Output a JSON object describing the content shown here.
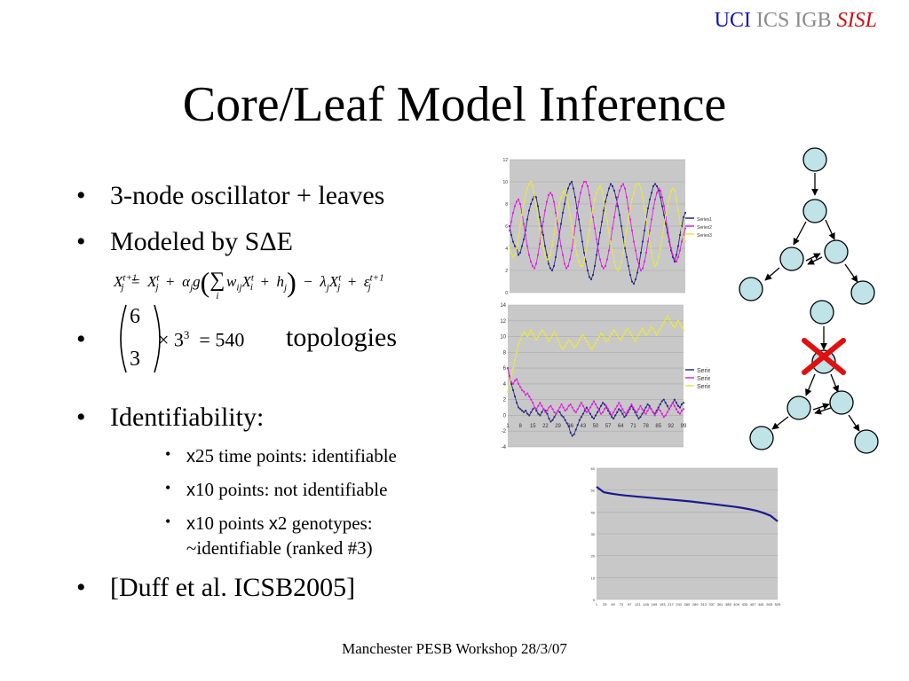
{
  "header": {
    "brand_uci": "UCI",
    "brand_mid": " ICS IGB ",
    "brand_sisl": "SISL"
  },
  "slide": {
    "title": "Core/Leaf Model Inference",
    "bullets": {
      "b1": "3-node oscillator + leaves",
      "b2": "Modeled by SΔE",
      "b3_text": "topologies",
      "b3_times": "× 3",
      "b3_exp": "3",
      "b3_eq": "= 540",
      "b3_binom_top": "6",
      "b3_binom_bot": "3",
      "b4": "Identifiability:",
      "b5": "[Duff et al. ICSB2005]"
    },
    "sub_bullets": [
      {
        "x": "x",
        "text": "25 time points: identifiable"
      },
      {
        "x": "x",
        "text": "10 points: not identifiable"
      },
      {
        "x": "x",
        "text": "10 points ",
        "x2": "x",
        "text2": "2 genotypes:",
        "line2": "~identifiable (ranked #3)"
      }
    ],
    "bullet_glyph": "•",
    "footer": "Manchester PESB Workshop 28/3/07"
  },
  "equation": {
    "X": "X",
    "t1": "t+1",
    "t": "t",
    "j": "j",
    "i": "i",
    "ij": "ij",
    "eq": "=",
    "plus": "+",
    "minus": "−",
    "alpha": "α",
    "g": "g",
    "sum": "∑",
    "w": "w",
    "h": "h",
    "lambda": "λ",
    "eps": "ε"
  },
  "chart_data": [
    {
      "type": "line",
      "x_range": [
        1,
        100
      ],
      "ylim": [
        0,
        12
      ],
      "yticks": [
        "0",
        "2",
        "4",
        "6",
        "8",
        "10",
        "12"
      ],
      "grid": true,
      "legend_position": "right",
      "series": [
        {
          "name": "Series1",
          "color": "#2a2a80",
          "values": [
            6,
            5.2,
            4.6,
            4.2,
            4,
            3.4,
            3.6,
            4.2,
            4.8,
            5.6,
            6.6,
            7.4,
            8,
            8.4,
            8.8,
            8.6,
            7.8,
            6.8,
            6,
            5.2,
            4.2,
            3.4,
            2.6,
            2.2,
            2,
            2.4,
            3.2,
            4.2,
            5.2,
            6.2,
            7.2,
            8,
            8.8,
            9.4,
            9.8,
            10,
            9.4,
            8.6,
            7.6,
            6.6,
            5.6,
            4.6,
            3.6,
            2.8,
            2,
            1.4,
            1.2,
            1.6,
            2.4,
            3.4,
            4.4,
            5.4,
            6.4,
            7.4,
            8.2,
            8.8,
            9.4,
            9.8,
            9.6,
            9.2,
            8.6,
            7.8,
            7,
            6,
            5,
            4,
            3.2,
            2.4,
            1.6,
            1,
            0.8,
            1.2,
            1.8,
            2.6,
            3.6,
            4.6,
            5.6,
            6.6,
            7.6,
            8.4,
            9,
            9.6,
            9.8,
            9.6,
            9.2,
            8.6,
            7.8,
            7,
            6.2,
            5.4,
            4.6,
            3.8,
            3.2,
            2.8,
            3.4,
            4.2,
            5.2,
            6,
            6.8,
            7.2
          ]
        },
        {
          "name": "Series2",
          "color": "#e020e0",
          "values": [
            5.6,
            6.4,
            7.2,
            7.8,
            8.2,
            8.4,
            8,
            7.2,
            6.2,
            5.2,
            4.2,
            3.4,
            2.8,
            2.4,
            2.2,
            2.6,
            3.4,
            4.4,
            5.4,
            6.4,
            7.4,
            8.2,
            8.8,
            9,
            8.8,
            8.2,
            7.2,
            6.2,
            5.2,
            4.2,
            3.4,
            2.6,
            2.2,
            2.4,
            3,
            3.8,
            4.8,
            6,
            7.2,
            8.2,
            9,
            9.6,
            10,
            10,
            9.6,
            8.8,
            7.8,
            6.8,
            5.8,
            4.8,
            3.8,
            3,
            2.4,
            2.2,
            2.4,
            3,
            3.8,
            4.8,
            5.8,
            6.8,
            7.8,
            8.6,
            9.2,
            9.6,
            9.8,
            9.4,
            8.6,
            7.6,
            6.6,
            5.6,
            4.6,
            3.8,
            3,
            2.4,
            2,
            2.2,
            2.8,
            3.6,
            4.6,
            5.6,
            6.6,
            7.6,
            8.4,
            9,
            9.4,
            9.2,
            8.6,
            7.8,
            6.8,
            5.8,
            4.8,
            4,
            3.4,
            3,
            2.8,
            3.2,
            3.8,
            4.6,
            5.2,
            5.8
          ]
        },
        {
          "name": "Series3",
          "color": "#e8e840",
          "values": [
            4.2,
            3.6,
            3.2,
            3.4,
            4,
            5,
            6,
            7,
            8,
            8.8,
            9.4,
            9.8,
            10,
            9.6,
            8.8,
            7.8,
            6.8,
            5.8,
            4.8,
            4,
            3.4,
            3,
            3,
            3.4,
            4.2,
            5.2,
            6.2,
            7.2,
            8,
            8.6,
            9,
            9.2,
            8.8,
            8,
            7,
            6,
            5,
            4.2,
            3.4,
            2.8,
            2.4,
            2.4,
            2.8,
            3.6,
            4.6,
            5.6,
            6.6,
            7.6,
            8.4,
            9,
            9.4,
            9.6,
            9.2,
            8.4,
            7.4,
            6.4,
            5.4,
            4.4,
            3.6,
            2.8,
            2.2,
            2,
            2.2,
            2.8,
            3.6,
            4.6,
            5.6,
            6.6,
            7.6,
            8.4,
            9,
            9.6,
            9.8,
            9.8,
            9.4,
            8.6,
            7.6,
            6.6,
            5.6,
            4.6,
            3.6,
            2.8,
            2.4,
            2.6,
            3.2,
            4,
            5,
            6,
            7,
            7.8,
            8.6,
            9.2,
            9.4,
            9.2,
            8.4,
            7.4,
            6.4,
            5.6,
            5,
            4.6
          ]
        }
      ]
    },
    {
      "type": "line",
      "x_range": [
        1,
        99
      ],
      "ylim": [
        -4,
        14
      ],
      "yticks": [
        "-4",
        "-2",
        "0",
        "2",
        "4",
        "6",
        "8",
        "10",
        "12",
        "14"
      ],
      "xticks": [
        "1",
        "8",
        "15",
        "22",
        "29",
        "36",
        "43",
        "50",
        "57",
        "64",
        "71",
        "78",
        "85",
        "92",
        "99"
      ],
      "grid": true,
      "legend_position": "right",
      "series": [
        {
          "name": "Series1",
          "color": "#2a2a80",
          "values": [
            6,
            5,
            4,
            3.2,
            2.4,
            1.6,
            1,
            0.8,
            0.6,
            0.4,
            0.6,
            0.2,
            0,
            0.4,
            0.8,
            1,
            0.6,
            0.2,
            0,
            0.4,
            0.8,
            0.6,
            0.2,
            -0.4,
            -0.8,
            -0.6,
            -0.2,
            0.2,
            0.6,
            0.4,
            0,
            -0.2,
            -0.6,
            -1,
            -1.4,
            -2.2,
            -2.6,
            -2.4,
            -1.8,
            -1.2,
            -0.6,
            -0.2,
            0.2,
            0.6,
            1,
            0.6,
            0.2,
            -0.2,
            -0.4,
            0,
            0.4,
            0.8,
            1.2,
            1.6,
            1.4,
            1,
            0.6,
            0.2,
            -0.2,
            -0.4,
            0,
            0.4,
            0.8,
            0.6,
            0.2,
            -0.2,
            0,
            0.4,
            0.8,
            1.2,
            0.8,
            0.4,
            0,
            -0.4,
            -0.2,
            0.2,
            0.6,
            1,
            1.4,
            1.2,
            0.8,
            0.4,
            0.2,
            0.6,
            1,
            1.4,
            1.8,
            2,
            1.6,
            1.2,
            0.8,
            1.2,
            1.6,
            2,
            1.6,
            1.2,
            1,
            1.4,
            1.6
          ]
        },
        {
          "name": "Series2",
          "color": "#e020e0",
          "values": [
            6,
            5,
            4.2,
            4,
            4.4,
            4.6,
            4,
            3.6,
            3.2,
            3,
            2.6,
            2.8,
            2.4,
            2,
            1.6,
            1,
            0.8,
            1.2,
            1.6,
            1.2,
            0.8,
            0.4,
            0.6,
            1,
            1.2,
            0.8,
            0.4,
            0.2,
            0.6,
            1,
            1.4,
            1,
            0.6,
            0.8,
            1.2,
            1.4,
            1,
            0.6,
            0.4,
            0.8,
            1.2,
            1.6,
            1.2,
            0.8,
            0.4,
            0.6,
            1,
            1.4,
            1.8,
            1.4,
            1,
            0.6,
            0.2,
            0.4,
            0.8,
            1.2,
            0.8,
            0.4,
            0,
            0.4,
            0.8,
            1.2,
            1.6,
            1.2,
            0.8,
            0.4,
            0.2,
            0.6,
            1,
            1.4,
            1,
            0.6,
            0.4,
            0.8,
            1.2,
            0.8,
            0.4,
            0.2,
            0.6,
            1,
            0.8,
            0.4,
            0,
            0.4,
            0.8,
            0.6,
            0.2,
            -0.2,
            0,
            0.4,
            0.8,
            1.2,
            1.6,
            1.2,
            0.8,
            0.4,
            0.2,
            0.6,
            0.8
          ]
        },
        {
          "name": "Series3",
          "color": "#e8e840",
          "values": [
            3,
            4,
            5,
            6,
            7,
            8,
            9,
            9.6,
            10.2,
            10.6,
            10.4,
            10,
            10.4,
            10.8,
            10.4,
            10,
            9.6,
            10,
            10.4,
            10.8,
            10.6,
            10.2,
            9.8,
            9.4,
            9.8,
            10.2,
            10.6,
            10.2,
            9.6,
            9,
            8.6,
            8.4,
            8.8,
            9.2,
            9.6,
            9.4,
            9,
            8.6,
            8.8,
            9.2,
            9.6,
            10,
            10.2,
            9.8,
            9.4,
            9,
            8.6,
            8.4,
            8.8,
            9.2,
            9.6,
            10,
            10.4,
            10.2,
            9.8,
            9.4,
            9.6,
            10,
            10.4,
            10.8,
            10.6,
            10.2,
            9.8,
            9.6,
            10,
            10.4,
            10.8,
            11,
            10.6,
            10.2,
            9.8,
            9.4,
            9.8,
            10.2,
            10.6,
            11,
            10.6,
            10.2,
            10.4,
            10.8,
            11.2,
            11,
            10.6,
            10.2,
            10.6,
            11,
            11.4,
            11.8,
            12.2,
            12.6,
            12.2,
            11.8,
            11.4,
            11.2,
            11.6,
            12,
            11.6,
            11.2,
            10.8
          ]
        }
      ]
    },
    {
      "type": "line",
      "x_range": [
        1,
        529
      ],
      "ylim": [
        0,
        60
      ],
      "yticks": [
        "0",
        "10",
        "20",
        "30",
        "40",
        "50",
        "60"
      ],
      "xticks": [
        "1",
        "25",
        "49",
        "73",
        "97",
        "121",
        "145",
        "169",
        "193",
        "217",
        "241",
        "265",
        "289",
        "313",
        "337",
        "361",
        "385",
        "409",
        "433",
        "457",
        "481",
        "505",
        "529"
      ],
      "grid": true,
      "series": [
        {
          "name": "",
          "color": "#1a1a90",
          "values": [
            51.5,
            49,
            48.4,
            47.9,
            47.5,
            47.2,
            46.9,
            46.6,
            46.3,
            46,
            45.7,
            45.4,
            45.1,
            44.8,
            44.4,
            44,
            43.6,
            43.2,
            42.8,
            42.4,
            41.9,
            41.3,
            40.6,
            39.6,
            38.3,
            35.7
          ]
        }
      ]
    }
  ]
}
